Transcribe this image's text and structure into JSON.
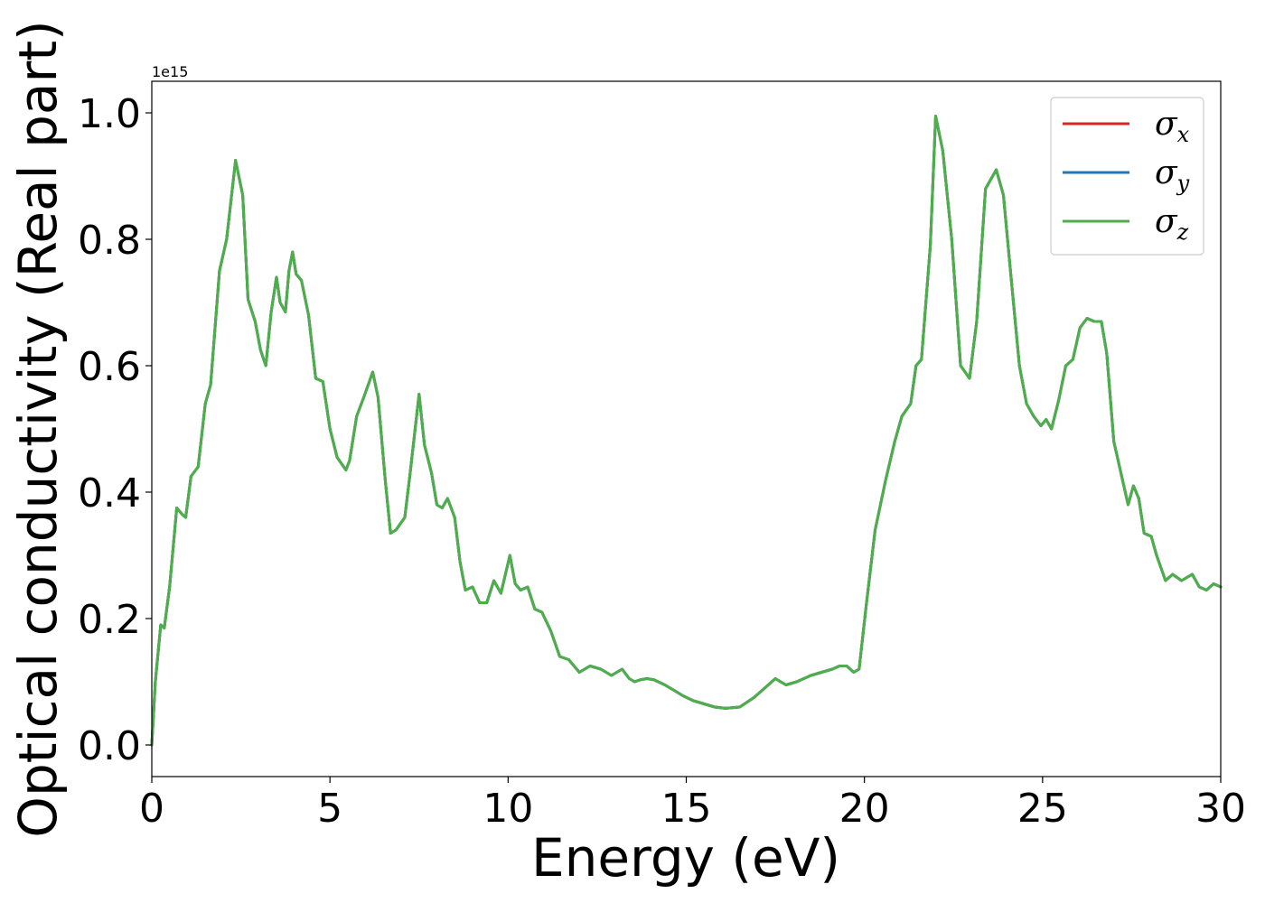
{
  "chart_data": {
    "type": "line",
    "xlabel": "Energy (eV)",
    "ylabel": "Optical conductivity (Real part)",
    "y_offset_label": "1e15",
    "xlim": [
      0,
      30
    ],
    "ylim": [
      -0.05,
      1.05
    ],
    "y_scale_factor": 1000000000000000.0,
    "x_ticks": [
      0,
      5,
      10,
      15,
      20,
      25,
      30
    ],
    "x_tick_labels": [
      "0",
      "5",
      "10",
      "15",
      "20",
      "25",
      "30"
    ],
    "y_ticks": [
      0.0,
      0.2,
      0.4,
      0.6,
      0.8,
      1.0
    ],
    "y_tick_labels": [
      "0.0",
      "0.2",
      "0.4",
      "0.6",
      "0.8",
      "1.0"
    ],
    "grid": false,
    "legend_position": "top-right",
    "legend": [
      {
        "symbol": "σ",
        "subscript": "x",
        "color": "#d62728"
      },
      {
        "symbol": "σ",
        "subscript": "y",
        "color": "#1f77b4"
      },
      {
        "symbol": "σ",
        "subscript": "z",
        "color": "#4daf4a"
      }
    ],
    "x": [
      0.0,
      0.1,
      0.25,
      0.35,
      0.5,
      0.7,
      0.85,
      0.95,
      1.1,
      1.3,
      1.5,
      1.65,
      1.9,
      2.1,
      2.35,
      2.55,
      2.7,
      2.9,
      3.05,
      3.2,
      3.35,
      3.5,
      3.6,
      3.75,
      3.85,
      3.95,
      4.05,
      4.2,
      4.4,
      4.6,
      4.8,
      5.0,
      5.2,
      5.45,
      5.55,
      5.75,
      5.95,
      6.2,
      6.35,
      6.55,
      6.7,
      6.85,
      7.1,
      7.25,
      7.5,
      7.65,
      7.85,
      8.0,
      8.15,
      8.3,
      8.5,
      8.65,
      8.8,
      9.0,
      9.2,
      9.4,
      9.6,
      9.8,
      10.05,
      10.2,
      10.35,
      10.55,
      10.75,
      10.95,
      11.2,
      11.45,
      11.7,
      12.0,
      12.3,
      12.6,
      12.9,
      13.2,
      13.4,
      13.55,
      13.7,
      13.9,
      14.1,
      14.4,
      14.7,
      14.9,
      15.2,
      15.5,
      15.8,
      16.1,
      16.5,
      16.9,
      17.2,
      17.5,
      17.8,
      18.1,
      18.5,
      18.8,
      19.1,
      19.3,
      19.5,
      19.7,
      19.85,
      20.05,
      20.3,
      20.6,
      20.85,
      21.05,
      21.3,
      21.45,
      21.6,
      21.85,
      22.0,
      22.2,
      22.45,
      22.7,
      22.95,
      23.15,
      23.4,
      23.7,
      23.9,
      24.1,
      24.35,
      24.55,
      24.75,
      24.95,
      25.1,
      25.25,
      25.45,
      25.65,
      25.85,
      26.05,
      26.25,
      26.45,
      26.65,
      26.8,
      27.0,
      27.2,
      27.4,
      27.55,
      27.7,
      27.85,
      28.05,
      28.2,
      28.45,
      28.65,
      28.9,
      29.2,
      29.4,
      29.6,
      29.8,
      30.0
    ],
    "series": [
      {
        "values": [
          0.0,
          0.1,
          0.19,
          0.185,
          0.25,
          0.375,
          0.365,
          0.36,
          0.425,
          0.44,
          0.54,
          0.57,
          0.75,
          0.8,
          0.925,
          0.87,
          0.705,
          0.67,
          0.625,
          0.6,
          0.685,
          0.74,
          0.7,
          0.685,
          0.75,
          0.78,
          0.745,
          0.735,
          0.68,
          0.58,
          0.575,
          0.5,
          0.455,
          0.435,
          0.45,
          0.52,
          0.55,
          0.59,
          0.55,
          0.42,
          0.335,
          0.34,
          0.36,
          0.43,
          0.555,
          0.475,
          0.43,
          0.38,
          0.375,
          0.39,
          0.36,
          0.29,
          0.245,
          0.25,
          0.225,
          0.225,
          0.26,
          0.24,
          0.3,
          0.255,
          0.245,
          0.25,
          0.215,
          0.21,
          0.18,
          0.14,
          0.135,
          0.115,
          0.125,
          0.12,
          0.11,
          0.12,
          0.105,
          0.1,
          0.103,
          0.105,
          0.103,
          0.095,
          0.085,
          0.078,
          0.07,
          0.065,
          0.06,
          0.058,
          0.06,
          0.075,
          0.09,
          0.105,
          0.095,
          0.1,
          0.11,
          0.115,
          0.12,
          0.125,
          0.125,
          0.115,
          0.12,
          0.22,
          0.34,
          0.42,
          0.48,
          0.52,
          0.54,
          0.6,
          0.61,
          0.79,
          0.995,
          0.94,
          0.8,
          0.6,
          0.58,
          0.67,
          0.88,
          0.91,
          0.87,
          0.75,
          0.6,
          0.54,
          0.52,
          0.505,
          0.515,
          0.5,
          0.545,
          0.6,
          0.61,
          0.66,
          0.675,
          0.67,
          0.67,
          0.62,
          0.48,
          0.43,
          0.38,
          0.41,
          0.39,
          0.335,
          0.33,
          0.3,
          0.26,
          0.27,
          0.26,
          0.27,
          0.25,
          0.245,
          0.255,
          0.25
        ]
      }
    ]
  }
}
